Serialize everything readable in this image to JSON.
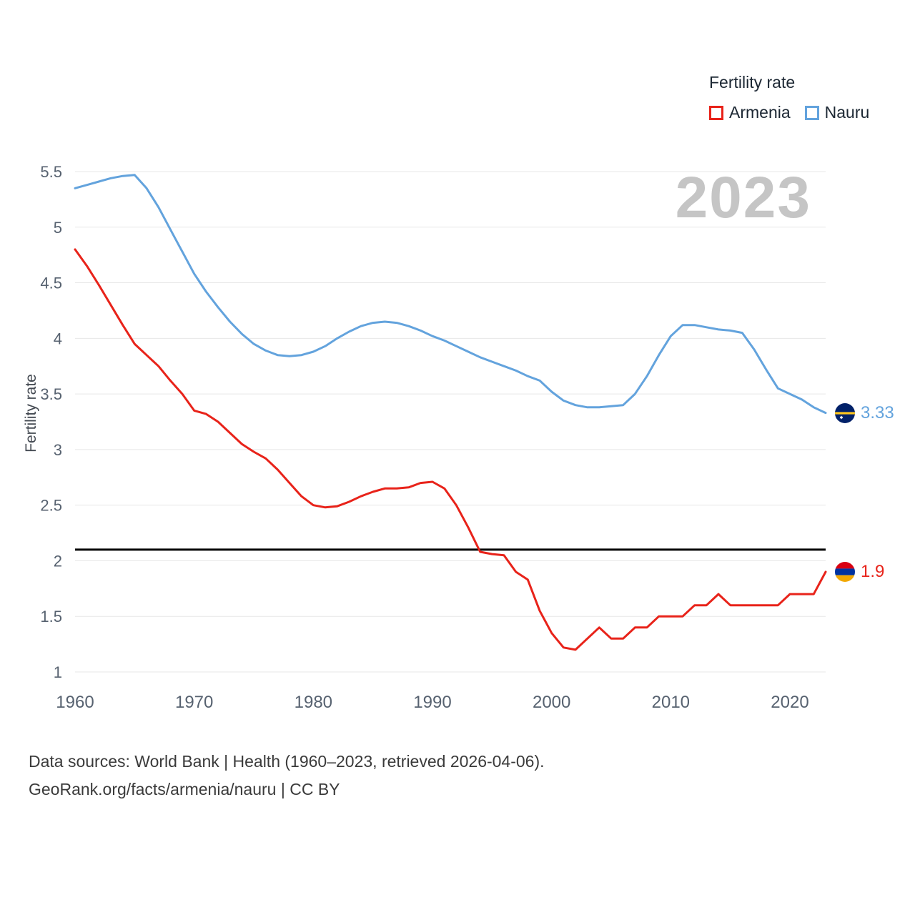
{
  "watermark": "2023",
  "legend": {
    "title": "Fertility rate",
    "items": [
      {
        "label": "Armenia",
        "color": "#e8231a"
      },
      {
        "label": "Nauru",
        "color": "#63a3dd"
      }
    ]
  },
  "footer": {
    "line1": "Data sources: World Bank | Health (1960–2023, retrieved 2026-04-06).",
    "line2": "GeoRank.org/facts/armenia/nauru | CC BY"
  },
  "chart_data": {
    "type": "line",
    "title": "Fertility rate",
    "ylabel": "Fertility rate",
    "xlim": [
      1960,
      2023
    ],
    "ylim": [
      1,
      5.5
    ],
    "x_ticks": [
      1960,
      1970,
      1980,
      1990,
      2000,
      2010,
      2020
    ],
    "y_ticks": [
      1,
      1.5,
      2,
      2.5,
      3,
      3.5,
      4,
      4.5,
      5,
      5.5
    ],
    "grid": "horizontal",
    "legend_position": "top-right",
    "reference_line": {
      "value": 2.1,
      "color": "#000000"
    },
    "x": [
      1960,
      1961,
      1962,
      1963,
      1964,
      1965,
      1966,
      1967,
      1968,
      1969,
      1970,
      1971,
      1972,
      1973,
      1974,
      1975,
      1976,
      1977,
      1978,
      1979,
      1980,
      1981,
      1982,
      1983,
      1984,
      1985,
      1986,
      1987,
      1988,
      1989,
      1990,
      1991,
      1992,
      1993,
      1994,
      1995,
      1996,
      1997,
      1998,
      1999,
      2000,
      2001,
      2002,
      2003,
      2004,
      2005,
      2006,
      2007,
      2008,
      2009,
      2010,
      2011,
      2012,
      2013,
      2014,
      2015,
      2016,
      2017,
      2018,
      2019,
      2020,
      2021,
      2022,
      2023
    ],
    "series": [
      {
        "name": "Armenia",
        "color": "#e8231a",
        "end_label": "1.9",
        "values": [
          4.8,
          4.65,
          4.48,
          4.3,
          4.12,
          3.95,
          3.85,
          3.75,
          3.62,
          3.5,
          3.35,
          3.32,
          3.25,
          3.15,
          3.05,
          2.98,
          2.92,
          2.82,
          2.7,
          2.58,
          2.5,
          2.48,
          2.49,
          2.53,
          2.58,
          2.62,
          2.65,
          2.65,
          2.66,
          2.7,
          2.71,
          2.65,
          2.5,
          2.3,
          2.08,
          2.06,
          2.05,
          1.9,
          1.83,
          1.55,
          1.35,
          1.22,
          1.2,
          1.3,
          1.4,
          1.3,
          1.3,
          1.4,
          1.4,
          1.5,
          1.5,
          1.5,
          1.6,
          1.6,
          1.7,
          1.6,
          1.6,
          1.6,
          1.6,
          1.6,
          1.7,
          1.7,
          1.7,
          1.9
        ]
      },
      {
        "name": "Nauru",
        "color": "#63a3dd",
        "end_label": "3.33",
        "values": [
          5.35,
          5.38,
          5.41,
          5.44,
          5.46,
          5.47,
          5.35,
          5.18,
          4.98,
          4.78,
          4.58,
          4.42,
          4.28,
          4.15,
          4.04,
          3.95,
          3.89,
          3.85,
          3.84,
          3.85,
          3.88,
          3.93,
          4.0,
          4.06,
          4.11,
          4.14,
          4.15,
          4.14,
          4.11,
          4.07,
          4.02,
          3.98,
          3.93,
          3.88,
          3.83,
          3.79,
          3.75,
          3.71,
          3.66,
          3.62,
          3.52,
          3.44,
          3.4,
          3.38,
          3.38,
          3.39,
          3.4,
          3.5,
          3.66,
          3.85,
          4.02,
          4.12,
          4.12,
          4.1,
          4.08,
          4.07,
          4.05,
          3.9,
          3.72,
          3.55,
          3.5,
          3.45,
          3.38,
          3.33
        ]
      }
    ]
  }
}
